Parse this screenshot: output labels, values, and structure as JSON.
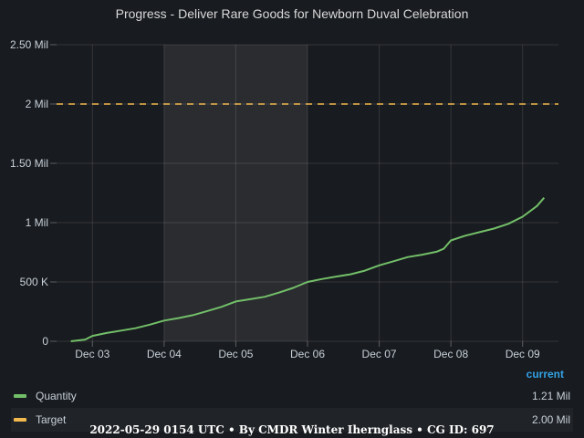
{
  "title": "Progress - Deliver Rare Goods for Newborn Duval Celebration",
  "legend": {
    "header": "current",
    "items": [
      {
        "name": "Quantity",
        "value": "1.21 Mil",
        "color": "#73bf69"
      },
      {
        "name": "Target",
        "value": "2.00 Mil",
        "color": "#f2b94f"
      }
    ]
  },
  "footer": "2022-05-29 0154 UTC • By CMDR Winter Ihernglass • CG ID: 697",
  "chart_data": {
    "type": "line",
    "title": "Progress - Deliver Rare Goods for Newborn Duval Celebration",
    "xlabel": "",
    "ylabel": "",
    "x_ticks": [
      "Dec 03",
      "Dec 04",
      "Dec 05",
      "Dec 06",
      "Dec 07",
      "Dec 08",
      "Dec 09"
    ],
    "x_range": [
      "Dec 02 12:00",
      "Dec 09 12:00"
    ],
    "y_ticks": [
      {
        "value": 0,
        "label": "0"
      },
      {
        "value": 500000,
        "label": "500 K"
      },
      {
        "value": 1000000,
        "label": "1 Mil"
      },
      {
        "value": 1500000,
        "label": "1.50 Mil"
      },
      {
        "value": 2000000,
        "label": "2 Mil"
      },
      {
        "value": 2500000,
        "label": "2.50 Mil"
      }
    ],
    "ylim": [
      0,
      2500000
    ],
    "grid": true,
    "highlight_region": [
      "Dec 04 00:00",
      "Dec 06 00:00"
    ],
    "series": [
      {
        "name": "Quantity",
        "color": "#73bf69",
        "points": [
          [
            "Dec 02 16:48",
            0
          ],
          [
            "Dec 02 21:36",
            15000
          ],
          [
            "Dec 03 00:00",
            45000
          ],
          [
            "Dec 03 04:48",
            70000
          ],
          [
            "Dec 03 09:36",
            90000
          ],
          [
            "Dec 03 14:24",
            110000
          ],
          [
            "Dec 03 19:12",
            140000
          ],
          [
            "Dec 04 00:00",
            175000
          ],
          [
            "Dec 04 04:48",
            195000
          ],
          [
            "Dec 04 09:36",
            220000
          ],
          [
            "Dec 04 14:24",
            255000
          ],
          [
            "Dec 04 19:12",
            290000
          ],
          [
            "Dec 05 00:00",
            335000
          ],
          [
            "Dec 05 04:48",
            355000
          ],
          [
            "Dec 05 09:36",
            375000
          ],
          [
            "Dec 05 14:24",
            410000
          ],
          [
            "Dec 05 19:12",
            450000
          ],
          [
            "Dec 06 00:00",
            500000
          ],
          [
            "Dec 06 04:48",
            525000
          ],
          [
            "Dec 06 09:36",
            545000
          ],
          [
            "Dec 06 14:24",
            565000
          ],
          [
            "Dec 06 19:12",
            595000
          ],
          [
            "Dec 07 00:00",
            640000
          ],
          [
            "Dec 07 04:48",
            675000
          ],
          [
            "Dec 07 09:36",
            710000
          ],
          [
            "Dec 07 14:24",
            730000
          ],
          [
            "Dec 07 19:12",
            755000
          ],
          [
            "Dec 07 21:36",
            780000
          ],
          [
            "Dec 08 00:00",
            850000
          ],
          [
            "Dec 08 04:48",
            890000
          ],
          [
            "Dec 08 09:36",
            920000
          ],
          [
            "Dec 08 14:24",
            950000
          ],
          [
            "Dec 08 19:12",
            990000
          ],
          [
            "Dec 09 00:00",
            1050000
          ],
          [
            "Dec 09 04:48",
            1140000
          ],
          [
            "Dec 09 07:12",
            1210000
          ]
        ]
      },
      {
        "name": "Target",
        "color": "#f2b94f",
        "style": "dashed",
        "points": [
          [
            "Dec 02 12:00",
            2000000
          ],
          [
            "Dec 09 12:00",
            2000000
          ]
        ]
      }
    ]
  }
}
